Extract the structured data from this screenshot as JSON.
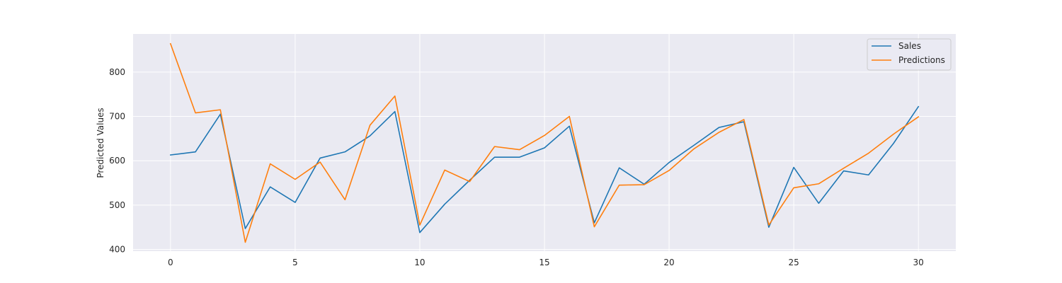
{
  "chart_data": {
    "type": "line",
    "title": "",
    "xlabel": "",
    "ylabel": "Predicted Values",
    "x": [
      0,
      1,
      2,
      3,
      4,
      5,
      6,
      7,
      8,
      9,
      10,
      11,
      12,
      13,
      14,
      15,
      16,
      17,
      18,
      19,
      20,
      21,
      22,
      23,
      24,
      25,
      26,
      27,
      28,
      29,
      30
    ],
    "xlim": [
      -1.5,
      31.5
    ],
    "ylim": [
      396,
      886
    ],
    "xticks": [
      0,
      5,
      10,
      15,
      20,
      25,
      30
    ],
    "yticks": [
      400,
      500,
      600,
      700,
      800
    ],
    "grid": true,
    "legend_position": "top-right",
    "series": [
      {
        "name": "Sales",
        "color": "#1f77b4",
        "values": [
          613,
          620,
          705,
          447,
          541,
          506,
          606,
          620,
          656,
          711,
          438,
          502,
          556,
          608,
          608,
          629,
          678,
          460,
          584,
          547,
          596,
          635,
          675,
          688,
          450,
          585,
          504,
          577,
          568,
          639,
          722
        ]
      },
      {
        "name": "Predictions",
        "color": "#ff7f0e",
        "values": [
          864,
          708,
          715,
          416,
          593,
          558,
          597,
          512,
          680,
          746,
          455,
          579,
          553,
          632,
          625,
          657,
          700,
          451,
          545,
          546,
          578,
          627,
          664,
          693,
          455,
          539,
          548,
          583,
          617,
          660,
          699
        ]
      }
    ]
  }
}
